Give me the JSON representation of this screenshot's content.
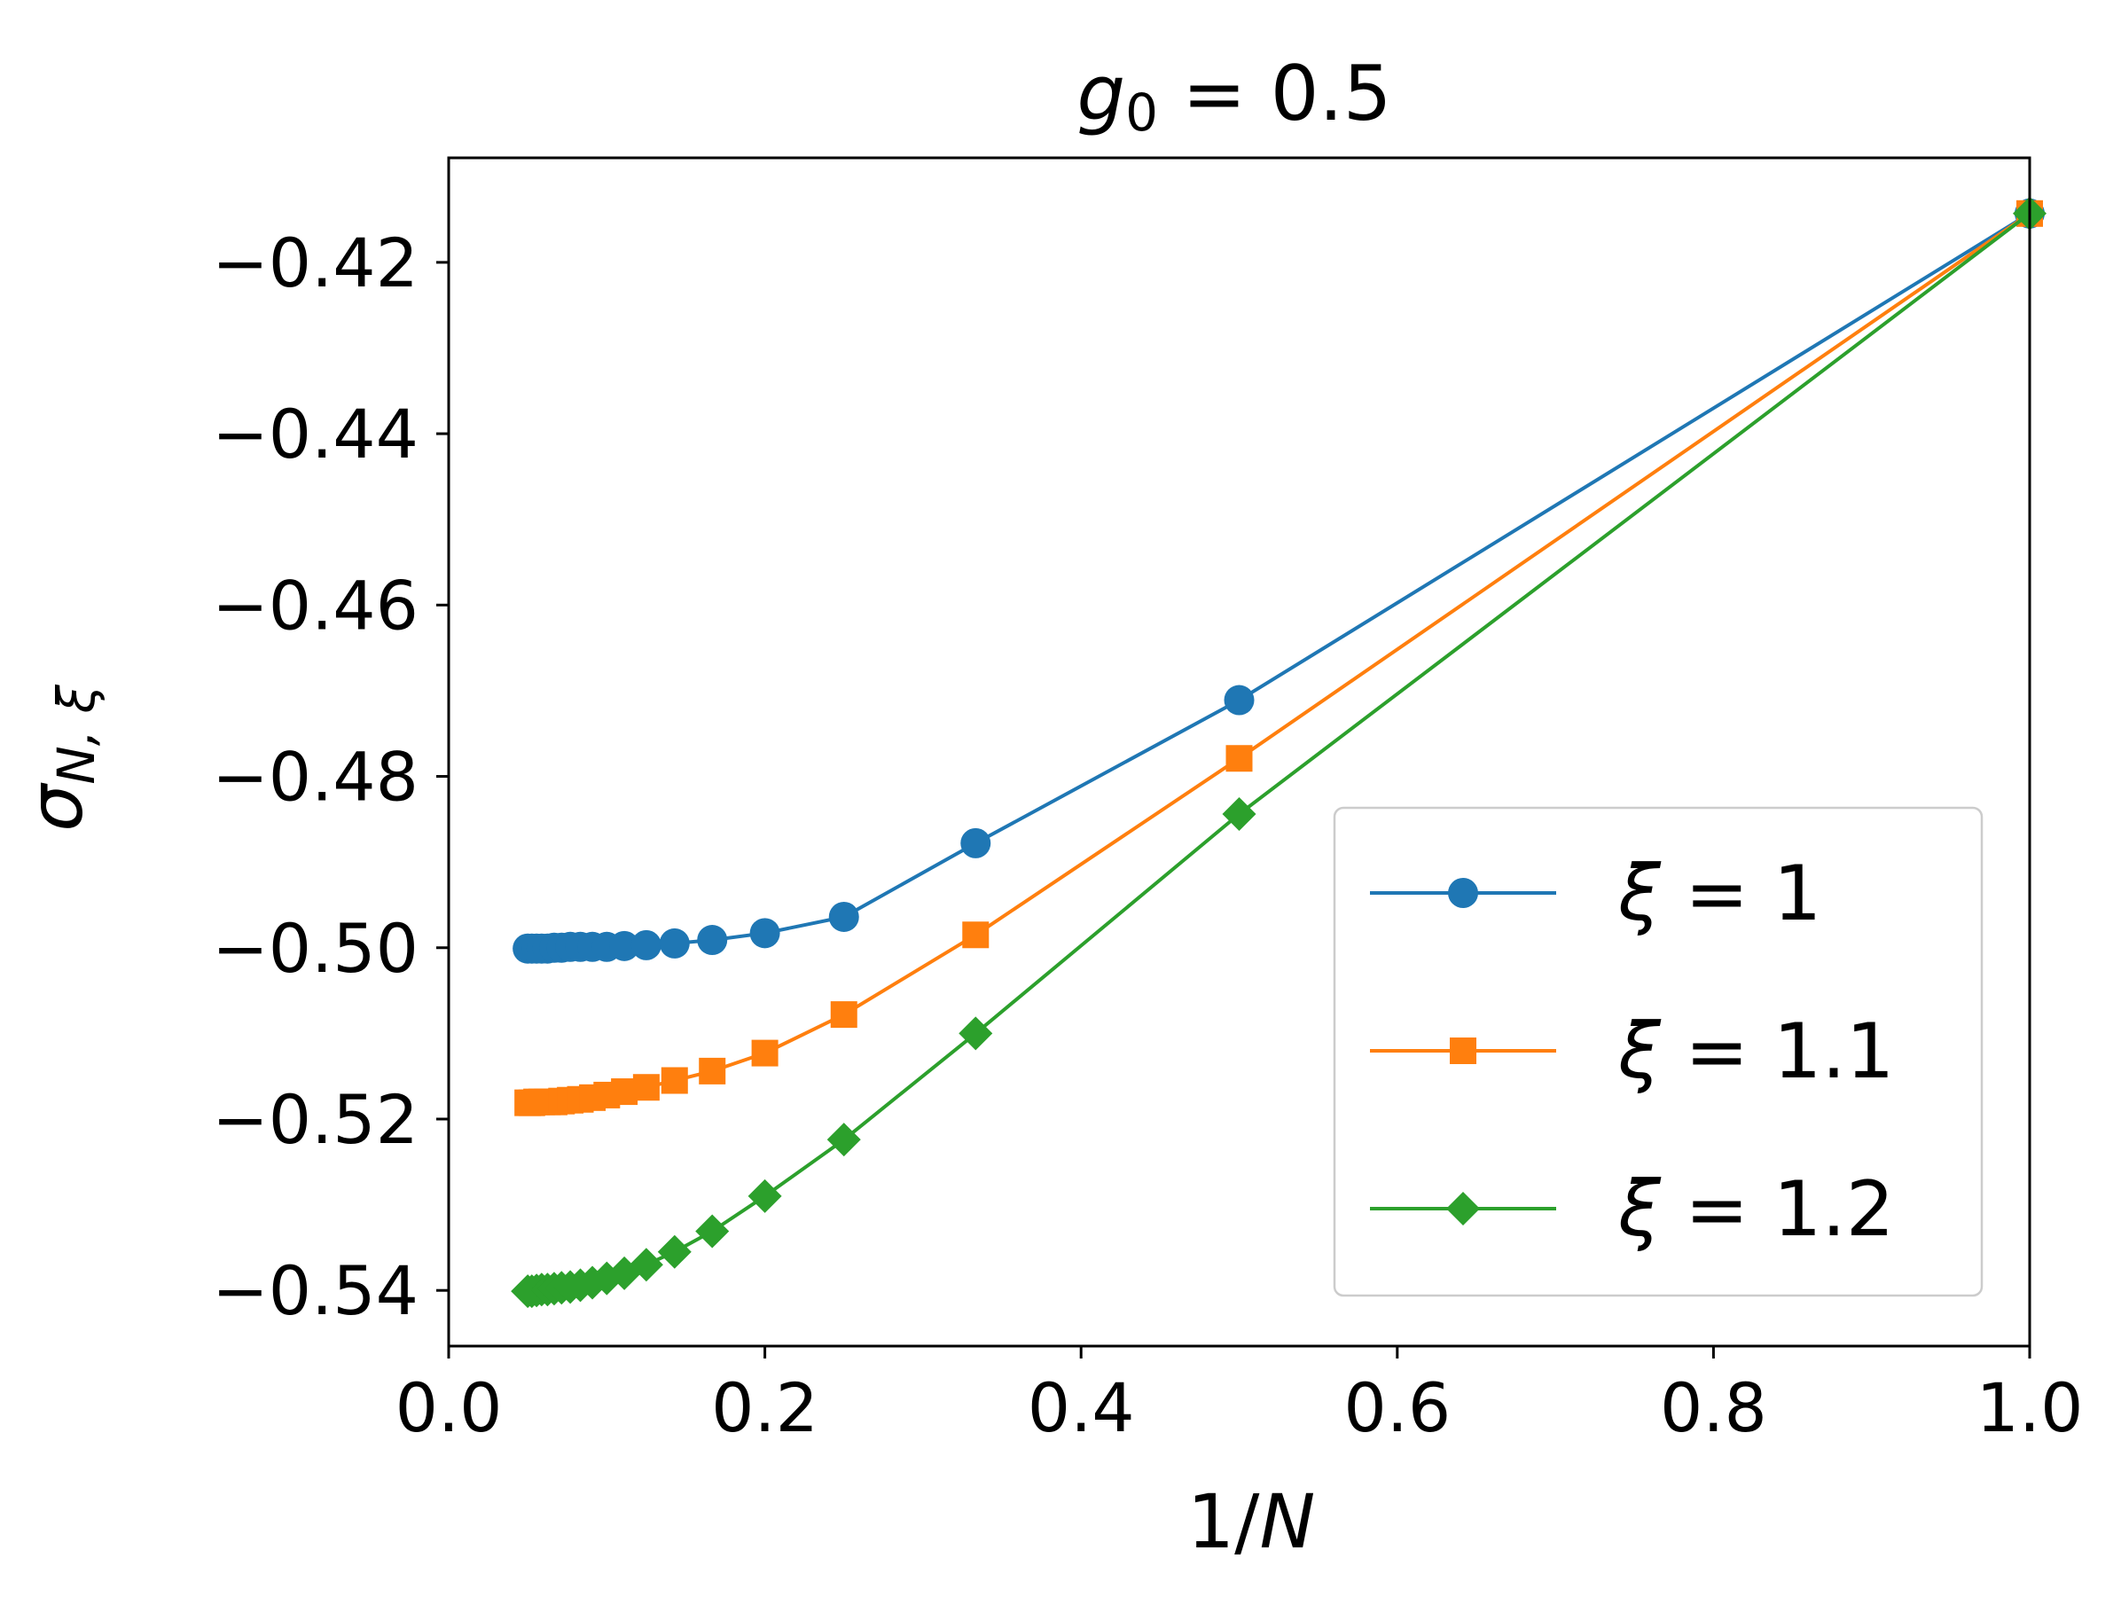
{
  "chart_data": {
    "type": "line",
    "title": "g₀ = 0.5",
    "title_parts": {
      "symbol": "g",
      "subscript": "0",
      "rest": " = 0.5"
    },
    "xlabel": "1/N",
    "xlabel_parts": {
      "prefix": "1/",
      "symbol": "N"
    },
    "ylabel": "σN,ξ",
    "ylabel_parts": {
      "symbol": "σ",
      "subscript": "N, ξ"
    },
    "xlim": [
      0.0,
      1.0
    ],
    "ylim": [
      -0.5465,
      -0.4078
    ],
    "xticks": [
      0.0,
      0.2,
      0.4,
      0.6,
      0.8,
      1.0
    ],
    "xtick_labels": [
      "0.0",
      "0.2",
      "0.4",
      "0.6",
      "0.8",
      "1.0"
    ],
    "yticks": [
      -0.42,
      -0.44,
      -0.46,
      -0.48,
      -0.5,
      -0.52,
      -0.54
    ],
    "ytick_labels": [
      "−0.42",
      "−0.44",
      "−0.46",
      "−0.48",
      "−0.50",
      "−0.52",
      "−0.54"
    ],
    "grid": false,
    "legend_position": "lower-right",
    "series": [
      {
        "name": "ξ = 1",
        "legend_symbol": "ξ",
        "legend_value": "= 1",
        "color": "#1f77b4",
        "marker": "circle",
        "x": [
          0.05,
          0.0526,
          0.0556,
          0.0588,
          0.0625,
          0.0667,
          0.0714,
          0.0769,
          0.0833,
          0.0909,
          0.1,
          0.1111,
          0.125,
          0.1429,
          0.1667,
          0.2,
          0.25,
          0.3333,
          0.5,
          1.0
        ],
        "y": [
          -0.5001,
          -0.5001,
          -0.5001,
          -0.5001,
          -0.5001,
          -0.5,
          -0.5,
          -0.4999,
          -0.4999,
          -0.4999,
          -0.4999,
          -0.4998,
          -0.4997,
          -0.4995,
          -0.4991,
          -0.4983,
          -0.4964,
          -0.4878,
          -0.4711,
          -0.4143
        ]
      },
      {
        "name": "ξ = 1.1",
        "legend_symbol": "ξ",
        "legend_value": "= 1.1",
        "color": "#ff7f0e",
        "marker": "square",
        "x": [
          0.05,
          0.0526,
          0.0556,
          0.0588,
          0.0625,
          0.0667,
          0.0714,
          0.0769,
          0.0833,
          0.0909,
          0.1,
          0.1111,
          0.125,
          0.1429,
          0.1667,
          0.2,
          0.25,
          0.3333,
          0.5,
          1.0
        ],
        "y": [
          -0.5181,
          -0.5181,
          -0.518,
          -0.518,
          -0.518,
          -0.518,
          -0.5179,
          -0.5178,
          -0.5177,
          -0.5175,
          -0.5172,
          -0.5168,
          -0.5163,
          -0.5155,
          -0.5144,
          -0.5123,
          -0.5078,
          -0.4985,
          -0.4779,
          -0.4143
        ]
      },
      {
        "name": "ξ = 1.2",
        "legend_symbol": "ξ",
        "legend_value": "= 1.2",
        "color": "#2ca02c",
        "marker": "diamond",
        "x": [
          0.05,
          0.0526,
          0.0556,
          0.0588,
          0.0625,
          0.0667,
          0.0714,
          0.0769,
          0.0833,
          0.0909,
          0.1,
          0.1111,
          0.125,
          0.1429,
          0.1667,
          0.2,
          0.25,
          0.3333,
          0.5,
          1.0
        ],
        "y": [
          -0.5401,
          -0.5401,
          -0.54,
          -0.5399,
          -0.5399,
          -0.5398,
          -0.5397,
          -0.5396,
          -0.5394,
          -0.5391,
          -0.5386,
          -0.538,
          -0.537,
          -0.5355,
          -0.5331,
          -0.529,
          -0.5224,
          -0.51,
          -0.4844,
          -0.4143
        ]
      }
    ]
  }
}
